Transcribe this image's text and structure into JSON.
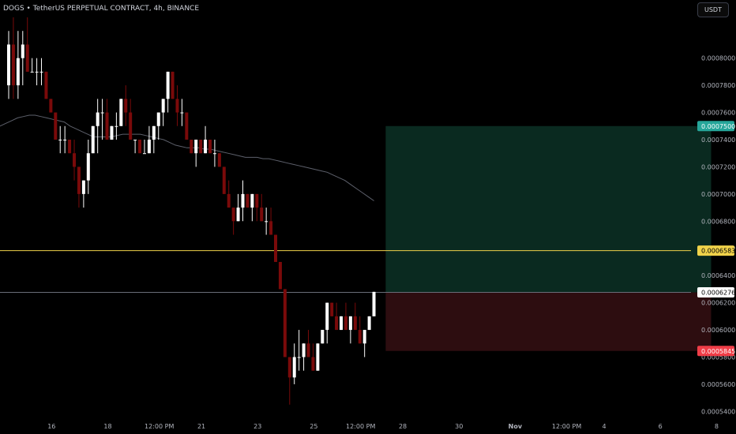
{
  "header": {
    "title": "DOGS • TetherUS PERPETUAL CONTRACT, 4h, BINANCE",
    "currency_button": "USDT"
  },
  "colors": {
    "background": "#000000",
    "candle_up": "#ffffff",
    "candle_down": "#7a0a0a",
    "ma_line": "#5d606b",
    "target_zone": "#0a2a20",
    "stop_zone": "#2d0d10",
    "target_label": "#26a69a",
    "stop_label": "#ef3d47",
    "entry_label": "#ffffff",
    "yellow_line": "#f0d24a",
    "axis_text": "#b2b5be"
  },
  "chart_data": {
    "type": "candlestick",
    "symbol": "DOGS • TetherUS PERPETUAL CONTRACT",
    "interval": "4h",
    "exchange": "BINANCE",
    "ylim": [
      0.000535,
      0.00083
    ],
    "y_ticks": [
      "0.0008000",
      "0.0007800",
      "0.0007600",
      "0.0007400",
      "0.0007200",
      "0.0007000",
      "0.0006800",
      "0.0006600",
      "0.0006400",
      "0.0006200",
      "0.0006000",
      "0.0005800",
      "0.0005600",
      "0.0005400"
    ],
    "y_tick_values": [
      0.0008,
      0.00078,
      0.00076,
      0.00074,
      0.00072,
      0.0007,
      0.00068,
      0.00066,
      0.00064,
      0.00062,
      0.0006,
      0.00058,
      0.00056,
      0.00054
    ],
    "x_ticks": [
      "16",
      "18",
      "12:00 PM",
      "21",
      "23",
      "25",
      "12:00 PM",
      "28",
      "30",
      "Nov",
      "12:00 PM",
      "4",
      "6",
      "8",
      "12:00 PM"
    ],
    "x_tick_bars": [
      10,
      22,
      33,
      42,
      54,
      66,
      76,
      85,
      97,
      109,
      120,
      128,
      140,
      152,
      162
    ],
    "bold_x_ticks": [
      "Nov"
    ],
    "candles": [
      [
        0.00078,
        0.00082,
        0.00077,
        0.00081
      ],
      [
        0.00081,
        0.00083,
        0.00077,
        0.00078
      ],
      [
        0.00078,
        0.00082,
        0.00077,
        0.0008
      ],
      [
        0.0008,
        0.00082,
        0.00078,
        0.00081
      ],
      [
        0.00081,
        0.00083,
        0.00079,
        0.00079
      ],
      [
        0.00079,
        0.0008,
        0.00079,
        0.00079
      ],
      [
        0.00079,
        0.0008,
        0.00078,
        0.00079
      ],
      [
        0.00079,
        0.0008,
        0.00078,
        0.00079
      ],
      [
        0.00079,
        0.00079,
        0.00077,
        0.00077
      ],
      [
        0.00077,
        0.00077,
        0.00076,
        0.00076
      ],
      [
        0.00076,
        0.00076,
        0.00074,
        0.00074
      ],
      [
        0.00074,
        0.00075,
        0.00073,
        0.00074
      ],
      [
        0.00074,
        0.00075,
        0.00073,
        0.00074
      ],
      [
        0.00074,
        0.00074,
        0.00073,
        0.00073
      ],
      [
        0.00073,
        0.00074,
        0.00071,
        0.00072
      ],
      [
        0.00072,
        0.00072,
        0.00069,
        0.0007
      ],
      [
        0.0007,
        0.00071,
        0.00069,
        0.00071
      ],
      [
        0.00071,
        0.00074,
        0.0007,
        0.00073
      ],
      [
        0.00073,
        0.00075,
        0.00073,
        0.00075
      ],
      [
        0.00075,
        0.00077,
        0.00073,
        0.00076
      ],
      [
        0.00076,
        0.00077,
        0.00074,
        0.00076
      ],
      [
        0.00076,
        0.00077,
        0.00074,
        0.00074
      ],
      [
        0.00074,
        0.00075,
        0.00074,
        0.00075
      ],
      [
        0.00075,
        0.00076,
        0.00074,
        0.00075
      ],
      [
        0.00075,
        0.00077,
        0.00075,
        0.00077
      ],
      [
        0.00077,
        0.00078,
        0.00075,
        0.00076
      ],
      [
        0.00076,
        0.00077,
        0.00074,
        0.00074
      ],
      [
        0.00074,
        0.00074,
        0.00073,
        0.00074
      ],
      [
        0.00074,
        0.00074,
        0.00073,
        0.00073
      ],
      [
        0.00073,
        0.00074,
        0.00073,
        0.00073
      ],
      [
        0.00073,
        0.00075,
        0.00073,
        0.00074
      ],
      [
        0.00074,
        0.00075,
        0.00073,
        0.00075
      ],
      [
        0.00075,
        0.00076,
        0.00074,
        0.00076
      ],
      [
        0.00076,
        0.00077,
        0.00075,
        0.00077
      ],
      [
        0.00077,
        0.00079,
        0.00076,
        0.00079
      ],
      [
        0.00079,
        0.00079,
        0.00077,
        0.00077
      ],
      [
        0.00077,
        0.00078,
        0.00075,
        0.00076
      ],
      [
        0.00076,
        0.00077,
        0.00075,
        0.00076
      ],
      [
        0.00076,
        0.00076,
        0.00074,
        0.00074
      ],
      [
        0.00074,
        0.00074,
        0.00073,
        0.00073
      ],
      [
        0.00073,
        0.00074,
        0.00072,
        0.00074
      ],
      [
        0.00074,
        0.00074,
        0.00073,
        0.00073
      ],
      [
        0.00073,
        0.00075,
        0.00073,
        0.00074
      ],
      [
        0.00074,
        0.00074,
        0.00073,
        0.00073
      ],
      [
        0.00073,
        0.00074,
        0.00072,
        0.00073
      ],
      [
        0.00073,
        0.00073,
        0.00072,
        0.00072
      ],
      [
        0.00072,
        0.00072,
        0.0007,
        0.0007
      ],
      [
        0.0007,
        0.00071,
        0.00069,
        0.00069
      ],
      [
        0.00069,
        0.00069,
        0.00067,
        0.00068
      ],
      [
        0.00068,
        0.0007,
        0.00068,
        0.00069
      ],
      [
        0.00069,
        0.00071,
        0.00068,
        0.0007
      ],
      [
        0.0007,
        0.0007,
        0.00069,
        0.00069
      ],
      [
        0.00069,
        0.0007,
        0.00068,
        0.0007
      ],
      [
        0.0007,
        0.0007,
        0.00068,
        0.00069
      ],
      [
        0.00069,
        0.0007,
        0.00068,
        0.00068
      ],
      [
        0.00068,
        0.00069,
        0.00067,
        0.00068
      ],
      [
        0.00068,
        0.00069,
        0.00067,
        0.00067
      ],
      [
        0.00067,
        0.00067,
        0.00065,
        0.00065
      ],
      [
        0.00065,
        0.00065,
        0.00063,
        0.00063
      ],
      [
        0.00063,
        0.00063,
        0.00058,
        0.00058
      ],
      [
        0.00058,
        0.00058,
        0.000545,
        0.000565
      ],
      [
        0.000565,
        0.00059,
        0.00056,
        0.00058
      ],
      [
        0.00058,
        0.0006,
        0.00057,
        0.00058
      ],
      [
        0.00058,
        0.00059,
        0.00057,
        0.00059
      ],
      [
        0.00059,
        0.0006,
        0.00058,
        0.00058
      ],
      [
        0.00058,
        0.00059,
        0.00057,
        0.00057
      ],
      [
        0.00057,
        0.00059,
        0.00057,
        0.00059
      ],
      [
        0.00059,
        0.0006,
        0.00059,
        0.0006
      ],
      [
        0.0006,
        0.00062,
        0.00059,
        0.00062
      ],
      [
        0.00062,
        0.00062,
        0.00061,
        0.00061
      ],
      [
        0.00061,
        0.00062,
        0.0006,
        0.0006
      ],
      [
        0.0006,
        0.00061,
        0.0006,
        0.00061
      ],
      [
        0.00061,
        0.00062,
        0.0006,
        0.0006
      ],
      [
        0.0006,
        0.00061,
        0.00059,
        0.00061
      ],
      [
        0.00061,
        0.00062,
        0.0006,
        0.0006
      ],
      [
        0.0006,
        0.00061,
        0.00059,
        0.00059
      ],
      [
        0.00059,
        0.0006,
        0.00058,
        0.0006
      ],
      [
        0.0006,
        0.00061,
        0.0006,
        0.00061
      ],
      [
        0.00061,
        0.000628,
        0.00061,
        0.000628
      ]
    ],
    "moving_average": [
      0.00075,
      0.000752,
      0.000754,
      0.000756,
      0.000757,
      0.000758,
      0.000758,
      0.000757,
      0.000756,
      0.000755,
      0.000754,
      0.000753,
      0.00075,
      0.000748,
      0.000746,
      0.000744,
      0.000742,
      0.000742,
      0.000742,
      0.000742,
      0.000743,
      0.000744,
      0.000744,
      0.000744,
      0.000744,
      0.000743,
      0.000742,
      0.000741,
      0.00074,
      0.000738,
      0.000736,
      0.000735,
      0.000734,
      0.000734,
      0.000734,
      0.000733,
      0.000733,
      0.000732,
      0.000731,
      0.00073,
      0.000729,
      0.000728,
      0.000727,
      0.000727,
      0.000727,
      0.000726,
      0.000726,
      0.000725,
      0.000724,
      0.000723,
      0.000722,
      0.000721,
      0.00072,
      0.000719,
      0.000718,
      0.000717,
      0.000716,
      0.000714,
      0.000712,
      0.00071,
      0.000707,
      0.000704,
      0.000701,
      0.000698,
      0.000695
    ],
    "horizontal_lines": [
      {
        "name": "resistance",
        "value": 0.0006583,
        "label": "0.0006583"
      },
      {
        "name": "entry",
        "value": 0.0006276,
        "label": "0.0006276"
      }
    ],
    "position": {
      "type": "long",
      "entry": 0.0006276,
      "target": 0.00075,
      "stop": 0.0005845,
      "target_label": "0.0007500",
      "stop_label": "0.0005845",
      "entry_label": "0.0006276",
      "start_bar": 80,
      "end_bar": 150
    }
  }
}
